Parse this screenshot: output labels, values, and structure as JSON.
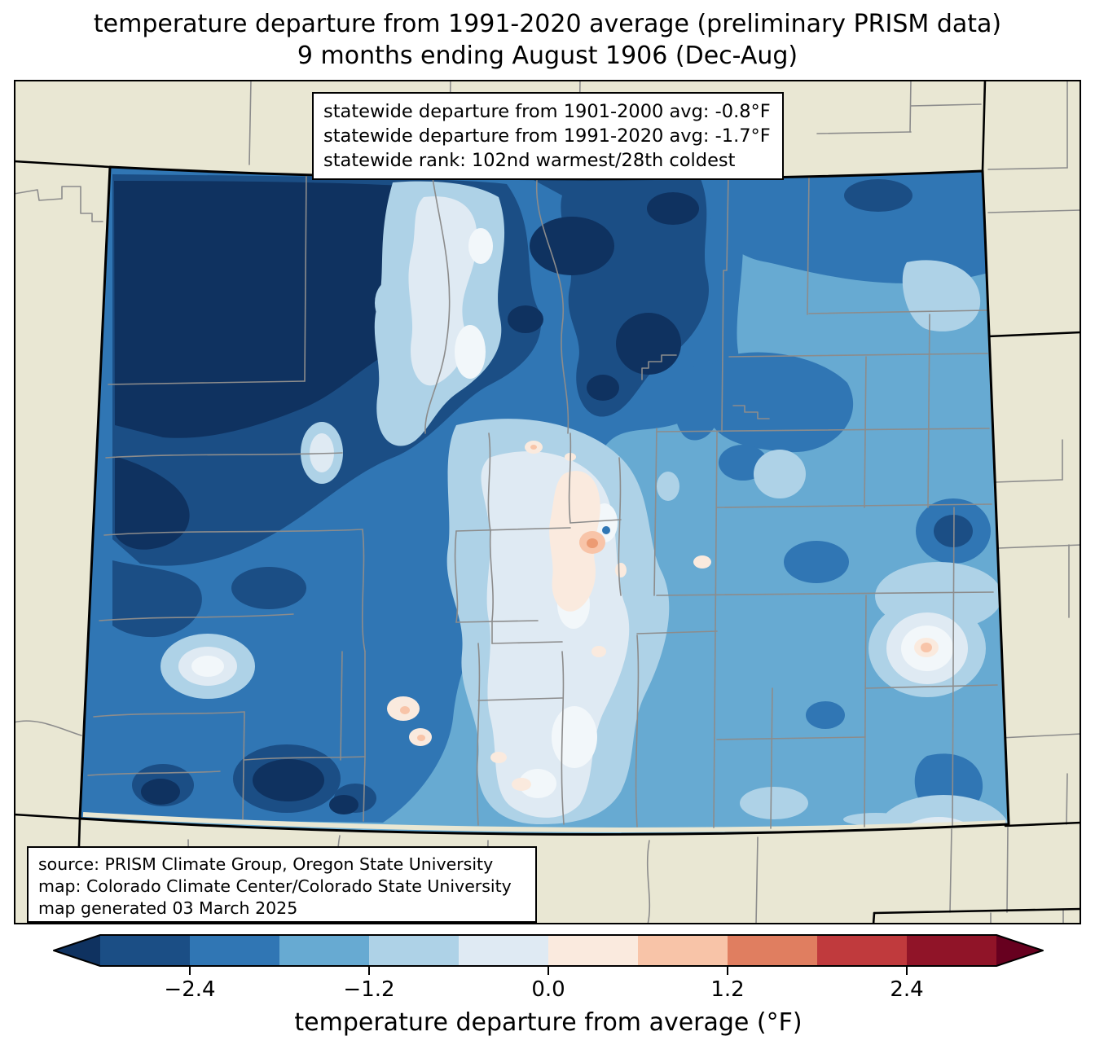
{
  "title": {
    "line1": "temperature departure from 1991-2020 average (preliminary PRISM data)",
    "line2": "9 months ending August 1906 (Dec-Aug)"
  },
  "stats_box": {
    "lines": [
      "statewide departure from 1901-2000 avg: -0.8°F",
      "statewide departure from 1991-2020 avg: -1.7°F",
      "statewide rank: 102nd warmest/28th coldest"
    ]
  },
  "source_box": {
    "lines": [
      "source: PRISM Climate Group, Oregon State University",
      "map: Colorado Climate Center/Colorado State University",
      "map generated 03 March 2025"
    ]
  },
  "colorbar": {
    "label": "temperature departure from average (°F)",
    "ticks": [
      "−2.4",
      "−1.2",
      "0.0",
      "1.2",
      "2.4"
    ],
    "tick_values": [
      -2.4,
      -1.2,
      0.0,
      1.2,
      2.4
    ],
    "levels": [
      -3.0,
      -2.4,
      -1.8,
      -1.2,
      -0.6,
      0.0,
      0.6,
      1.2,
      1.8,
      2.4,
      3.0
    ],
    "segment_colors": [
      "#1b4e85",
      "#3076b4",
      "#67aad2",
      "#aed2e7",
      "#dfeaf3",
      "#faeade",
      "#f8c4a8",
      "#e07e60",
      "#c03a3d",
      "#901428"
    ],
    "under_color": "#0f3260",
    "over_color": "#67001f"
  },
  "map": {
    "colors": {
      "background": "#e9e7d3",
      "county_line": "#8c8c8c",
      "state_border": "#000000",
      "near_zero_white": "#f2f7fa",
      "deep_warm_spot": "#ec9b73"
    }
  }
}
